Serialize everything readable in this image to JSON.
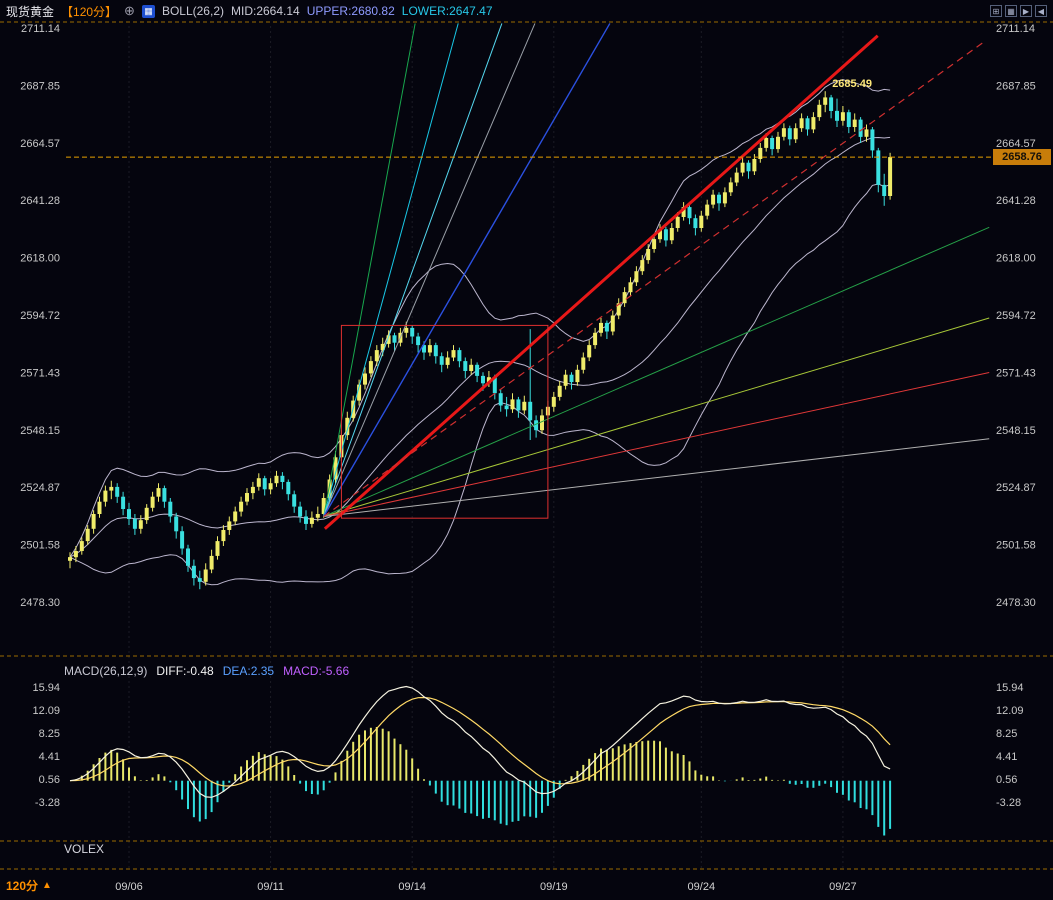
{
  "colors": {
    "background": "#05050e",
    "up": "#f0ec6a",
    "down": "#3ae0e0",
    "boll": "#ddd6f0",
    "separator": "#9a6a00",
    "axis_text": "#c8c8c8",
    "accent_orange": "#ff9000",
    "badge_bg": "#c87d0a",
    "diff_line": "#f5f2e0",
    "dea_line": "#ffd966",
    "hist_pos": "#e8e86a",
    "hist_neg": "#30dede"
  },
  "header": {
    "symbol": "现货黄金",
    "timeframe": "【120分】",
    "add_icon": "⊕",
    "indicator_icon": "▦",
    "boll": "BOLL(26,2)",
    "mid": "MID:2664.14",
    "upper": "UPPER:2680.82",
    "lower": "LOWER:2647.47",
    "window_icons": [
      "⊞",
      "▦",
      "▶",
      "◀"
    ]
  },
  "macd_info": {
    "label": "MACD(26,12,9)",
    "diff": "DIFF:-0.48",
    "dea": "DEA:2.35",
    "macd": "MACD:-5.66"
  },
  "volex_label": "VOLEX",
  "footer": {
    "timeframe": "120分",
    "arrow": "▲"
  },
  "current_price": "2658.76",
  "chart_data": {
    "type": "candlestick",
    "title": "现货黄金 120分 K线 / BOLL(26,2) / 江恩角度线 / MACD(26,12,9)",
    "price_range": [
      2478.3,
      2711.14
    ],
    "price_ticks": [
      "2711.14",
      "2687.85",
      "2664.57",
      "2641.28",
      "2618.00",
      "2594.72",
      "2571.43",
      "2548.15",
      "2524.87",
      "2501.58",
      "2478.30"
    ],
    "macd_ticks": [
      "15.94",
      "12.09",
      "8.25",
      "4.41",
      "0.56",
      "-3.28"
    ],
    "time_ticks": [
      {
        "label": "09/06",
        "i": 10
      },
      {
        "label": "09/11",
        "i": 34
      },
      {
        "label": "09/14",
        "i": 58
      },
      {
        "label": "09/19",
        "i": 82
      },
      {
        "label": "09/24",
        "i": 107
      },
      {
        "label": "09/27",
        "i": 131
      }
    ],
    "boll": {
      "period": 26,
      "mult": 2
    },
    "macd": {
      "fast": 12,
      "slow": 26,
      "signal": 9
    },
    "candles": [
      [
        2495.0,
        2498.5,
        2492.0,
        2496.5
      ],
      [
        2496.5,
        2501.0,
        2494.5,
        2499.0
      ],
      [
        2499.0,
        2504.5,
        2497.5,
        2503.0
      ],
      [
        2503.0,
        2509.5,
        2501.5,
        2508.0
      ],
      [
        2508.0,
        2515.5,
        2506.0,
        2514.0
      ],
      [
        2514.0,
        2521.0,
        2512.5,
        2519.0
      ],
      [
        2519.0,
        2525.5,
        2517.0,
        2523.5
      ],
      [
        2523.5,
        2527.5,
        2520.0,
        2525.0
      ],
      [
        2525.0,
        2526.5,
        2518.5,
        2521.0
      ],
      [
        2521.0,
        2523.0,
        2513.5,
        2516.0
      ],
      [
        2516.0,
        2518.5,
        2509.5,
        2512.0
      ],
      [
        2512.0,
        2514.0,
        2505.5,
        2508.0
      ],
      [
        2508.0,
        2513.5,
        2506.0,
        2511.5
      ],
      [
        2511.5,
        2518.0,
        2510.0,
        2516.5
      ],
      [
        2516.5,
        2523.0,
        2515.0,
        2521.0
      ],
      [
        2521.0,
        2526.5,
        2519.0,
        2524.5
      ],
      [
        2524.5,
        2525.5,
        2516.5,
        2519.0
      ],
      [
        2519.0,
        2520.5,
        2510.5,
        2513.0
      ],
      [
        2513.0,
        2514.5,
        2504.0,
        2507.0
      ],
      [
        2507.0,
        2509.0,
        2497.5,
        2500.0
      ],
      [
        2500.0,
        2501.5,
        2490.5,
        2493.0
      ],
      [
        2493.0,
        2495.5,
        2485.0,
        2488.0
      ],
      [
        2488.0,
        2491.0,
        2483.5,
        2486.5
      ],
      [
        2486.5,
        2494.0,
        2485.0,
        2491.5
      ],
      [
        2491.5,
        2499.5,
        2490.0,
        2497.0
      ],
      [
        2497.0,
        2505.0,
        2495.5,
        2503.0
      ],
      [
        2503.0,
        2509.5,
        2501.0,
        2507.5
      ],
      [
        2507.5,
        2513.0,
        2505.5,
        2511.0
      ],
      [
        2511.0,
        2517.0,
        2509.5,
        2515.0
      ],
      [
        2515.0,
        2521.0,
        2513.0,
        2519.0
      ],
      [
        2519.0,
        2524.5,
        2517.5,
        2522.5
      ],
      [
        2522.5,
        2527.0,
        2520.0,
        2525.0
      ],
      [
        2525.0,
        2530.5,
        2523.5,
        2528.5
      ],
      [
        2528.5,
        2529.5,
        2521.5,
        2524.0
      ],
      [
        2524.0,
        2528.5,
        2522.0,
        2526.5
      ],
      [
        2526.5,
        2531.5,
        2525.0,
        2529.5
      ],
      [
        2529.5,
        2531.0,
        2524.0,
        2527.0
      ],
      [
        2527.0,
        2528.0,
        2519.5,
        2522.0
      ],
      [
        2522.0,
        2523.5,
        2514.5,
        2517.0
      ],
      [
        2517.0,
        2519.0,
        2510.5,
        2513.0
      ],
      [
        2513.0,
        2515.5,
        2507.5,
        2510.0
      ],
      [
        2510.0,
        2515.0,
        2508.5,
        2512.5
      ],
      [
        2512.5,
        2517.0,
        2511.0,
        2514.0
      ],
      [
        2514.0,
        2522.5,
        2512.5,
        2520.5
      ],
      [
        2520.5,
        2530.0,
        2519.0,
        2528.0
      ],
      [
        2528.0,
        2539.5,
        2526.5,
        2537.0
      ],
      [
        2537.0,
        2548.0,
        2535.5,
        2546.0
      ],
      [
        2546.0,
        2555.5,
        2544.0,
        2553.0
      ],
      [
        2553.0,
        2562.0,
        2551.5,
        2560.0
      ],
      [
        2560.0,
        2568.5,
        2558.0,
        2566.5
      ],
      [
        2566.5,
        2573.5,
        2564.5,
        2571.0
      ],
      [
        2571.0,
        2578.0,
        2569.5,
        2576.0
      ],
      [
        2576.0,
        2582.5,
        2574.0,
        2580.5
      ],
      [
        2580.5,
        2585.5,
        2578.0,
        2583.0
      ],
      [
        2583.0,
        2588.5,
        2581.5,
        2586.5
      ],
      [
        2586.5,
        2587.5,
        2580.0,
        2583.5
      ],
      [
        2583.5,
        2589.5,
        2582.0,
        2587.5
      ],
      [
        2587.5,
        2592.0,
        2585.5,
        2589.5
      ],
      [
        2589.5,
        2590.5,
        2583.0,
        2586.0
      ],
      [
        2586.0,
        2587.5,
        2579.5,
        2582.5
      ],
      [
        2582.5,
        2584.0,
        2576.5,
        2579.5
      ],
      [
        2579.5,
        2585.0,
        2578.0,
        2582.5
      ],
      [
        2582.5,
        2583.5,
        2575.0,
        2578.0
      ],
      [
        2578.0,
        2579.5,
        2571.5,
        2574.5
      ],
      [
        2574.5,
        2580.0,
        2573.0,
        2577.5
      ],
      [
        2577.5,
        2582.5,
        2576.0,
        2580.5
      ],
      [
        2580.5,
        2581.5,
        2573.5,
        2576.0
      ],
      [
        2576.0,
        2577.5,
        2569.0,
        2572.0
      ],
      [
        2572.0,
        2577.0,
        2570.5,
        2574.5
      ],
      [
        2574.5,
        2575.5,
        2567.5,
        2570.0
      ],
      [
        2570.0,
        2571.5,
        2564.0,
        2567.0
      ],
      [
        2567.0,
        2572.0,
        2565.5,
        2569.5
      ],
      [
        2569.5,
        2570.5,
        2560.5,
        2563.0
      ],
      [
        2563.0,
        2564.5,
        2555.5,
        2558.0
      ],
      [
        2558.0,
        2561.5,
        2553.5,
        2556.5
      ],
      [
        2556.5,
        2563.0,
        2555.0,
        2560.5
      ],
      [
        2560.5,
        2561.5,
        2553.0,
        2556.0
      ],
      [
        2556.0,
        2562.0,
        2554.5,
        2559.5
      ],
      [
        2559.5,
        2589.0,
        2544.0,
        2552.0
      ],
      [
        2552.0,
        2554.0,
        2545.0,
        2548.0
      ],
      [
        2548.0,
        2556.5,
        2546.5,
        2554.0
      ],
      [
        2554.0,
        2560.0,
        2552.0,
        2557.5
      ],
      [
        2557.5,
        2563.5,
        2555.5,
        2561.5
      ],
      [
        2561.5,
        2568.0,
        2560.0,
        2566.0
      ],
      [
        2566.0,
        2572.5,
        2564.5,
        2570.5
      ],
      [
        2570.5,
        2571.5,
        2564.5,
        2567.5
      ],
      [
        2567.5,
        2574.5,
        2566.0,
        2572.5
      ],
      [
        2572.5,
        2579.5,
        2571.0,
        2577.5
      ],
      [
        2577.5,
        2584.5,
        2576.0,
        2582.5
      ],
      [
        2582.5,
        2589.5,
        2581.0,
        2587.5
      ],
      [
        2587.5,
        2593.5,
        2586.0,
        2591.5
      ],
      [
        2591.5,
        2592.5,
        2585.0,
        2588.0
      ],
      [
        2588.0,
        2596.5,
        2586.5,
        2594.5
      ],
      [
        2594.5,
        2601.5,
        2593.0,
        2599.5
      ],
      [
        2599.5,
        2606.0,
        2598.0,
        2604.0
      ],
      [
        2604.0,
        2610.0,
        2602.5,
        2608.0
      ],
      [
        2608.0,
        2614.5,
        2606.5,
        2612.5
      ],
      [
        2612.5,
        2619.0,
        2611.0,
        2617.0
      ],
      [
        2617.0,
        2623.5,
        2615.5,
        2621.5
      ],
      [
        2621.5,
        2627.5,
        2620.0,
        2625.5
      ],
      [
        2625.5,
        2631.5,
        2624.0,
        2629.5
      ],
      [
        2629.5,
        2630.5,
        2622.5,
        2625.0
      ],
      [
        2625.0,
        2632.0,
        2623.5,
        2630.0
      ],
      [
        2630.0,
        2636.5,
        2628.5,
        2634.5
      ],
      [
        2634.5,
        2640.5,
        2633.0,
        2638.5
      ],
      [
        2638.5,
        2639.5,
        2631.5,
        2634.0
      ],
      [
        2634.0,
        2635.5,
        2627.0,
        2630.0
      ],
      [
        2630.0,
        2637.0,
        2628.5,
        2635.0
      ],
      [
        2635.0,
        2641.5,
        2633.5,
        2639.5
      ],
      [
        2639.5,
        2645.5,
        2638.0,
        2643.5
      ],
      [
        2643.5,
        2644.5,
        2637.0,
        2640.0
      ],
      [
        2640.0,
        2646.5,
        2638.5,
        2644.5
      ],
      [
        2644.5,
        2650.5,
        2643.0,
        2648.5
      ],
      [
        2648.5,
        2654.5,
        2647.0,
        2652.5
      ],
      [
        2652.5,
        2658.5,
        2651.0,
        2656.5
      ],
      [
        2656.5,
        2657.5,
        2650.0,
        2653.0
      ],
      [
        2653.0,
        2660.0,
        2651.5,
        2658.0
      ],
      [
        2658.0,
        2664.5,
        2656.5,
        2662.5
      ],
      [
        2662.5,
        2668.5,
        2661.0,
        2666.5
      ],
      [
        2666.5,
        2667.5,
        2659.5,
        2662.0
      ],
      [
        2662.0,
        2669.0,
        2660.5,
        2667.0
      ],
      [
        2667.0,
        2672.5,
        2665.5,
        2670.5
      ],
      [
        2670.5,
        2671.5,
        2663.5,
        2666.0
      ],
      [
        2666.0,
        2672.5,
        2664.5,
        2670.5
      ],
      [
        2670.5,
        2676.5,
        2669.0,
        2674.5
      ],
      [
        2674.5,
        2675.5,
        2667.5,
        2670.0
      ],
      [
        2670.0,
        2677.0,
        2668.5,
        2675.0
      ],
      [
        2675.0,
        2682.0,
        2673.5,
        2680.0
      ],
      [
        2680.0,
        2685.49,
        2677.0,
        2683.0
      ],
      [
        2683.0,
        2684.0,
        2674.5,
        2677.5
      ],
      [
        2677.5,
        2682.5,
        2671.0,
        2673.5
      ],
      [
        2673.5,
        2679.5,
        2671.5,
        2677.0
      ],
      [
        2677.0,
        2678.0,
        2668.5,
        2671.0
      ],
      [
        2671.0,
        2676.5,
        2669.0,
        2674.0
      ],
      [
        2674.0,
        2675.0,
        2664.5,
        2667.0
      ],
      [
        2667.0,
        2672.0,
        2665.0,
        2670.0
      ],
      [
        2670.0,
        2671.0,
        2658.5,
        2661.5
      ],
      [
        2661.5,
        2662.5,
        2644.5,
        2647.5
      ],
      [
        2647.5,
        2652.0,
        2639.0,
        2643.0
      ],
      [
        2643.0,
        2660.5,
        2641.5,
        2658.76
      ]
    ],
    "annotations": {
      "gann_origin": [
        43,
        2513.0
      ],
      "rays": [
        {
          "color": "#18a84e",
          "w": 1,
          "end": [
            58.5,
            2713
          ]
        },
        {
          "color": "#19c8e6",
          "w": 1,
          "end": [
            65.8,
            2713
          ]
        },
        {
          "color": "#55d8f0",
          "w": 1,
          "end": [
            73.2,
            2713
          ]
        },
        {
          "color": "#9aa0a8",
          "w": 1,
          "end": [
            78.8,
            2713
          ]
        },
        {
          "color": "#2b50e0",
          "w": 1.4,
          "end": [
            91.5,
            2713
          ]
        },
        {
          "color": "#25a048",
          "w": 1,
          "end": [
            155.8,
            2630.3
          ]
        },
        {
          "color": "#a8c838",
          "w": 1,
          "end": [
            155.8,
            2593.5
          ]
        },
        {
          "color": "#e03838",
          "w": 1,
          "end": [
            155.8,
            2571.4
          ]
        },
        {
          "color": "#b0b0b0",
          "w": 1,
          "end": [
            155.8,
            2544.5
          ]
        }
      ],
      "trend_line": {
        "color": "#e81818",
        "w": 3,
        "from": [
          43.2,
          2508
        ],
        "to": [
          136.9,
          2708
        ]
      },
      "dashed_ray": {
        "color": "#d03030",
        "w": 1.2,
        "end": [
          155.2,
          2706
        ]
      },
      "rect": {
        "color": "#e03030",
        "from": [
          46,
          2590.5
        ],
        "to": [
          81,
          2512.3
        ]
      },
      "price_line": {
        "price": 2658.76,
        "color": "#e8a000"
      },
      "high_label": {
        "i": 128,
        "price": 2685.49,
        "text": "2685.49",
        "color": "#ffe97a"
      }
    }
  }
}
